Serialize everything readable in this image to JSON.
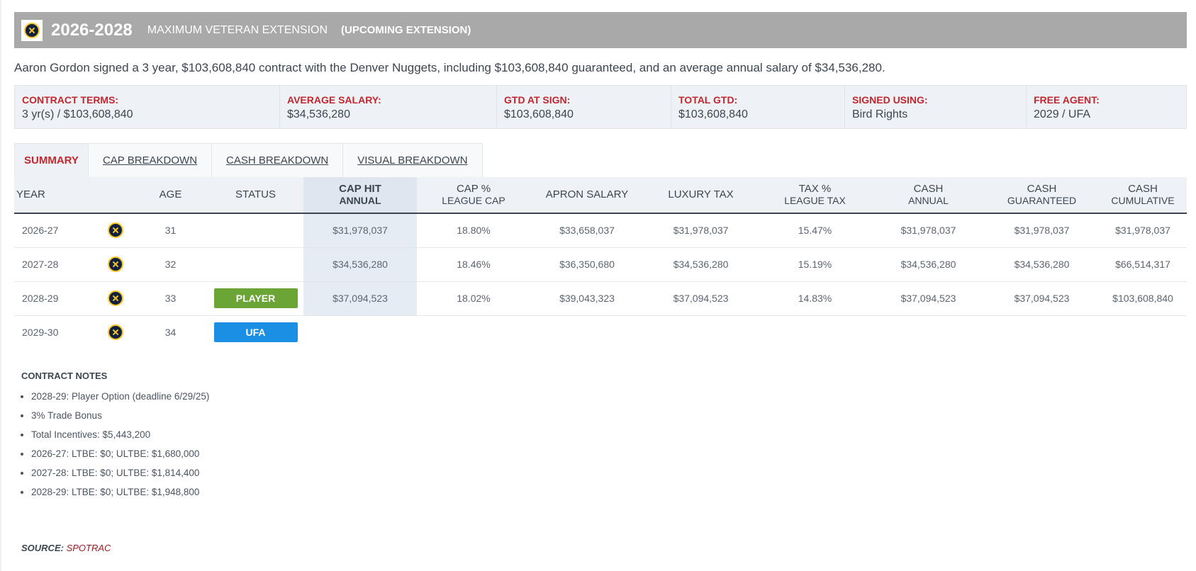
{
  "header": {
    "years": "2026-2028",
    "type": "MAXIMUM VETERAN EXTENSION",
    "status": "(UPCOMING EXTENSION)"
  },
  "description": "Aaron Gordon signed a 3 year, $103,608,840 contract with the Denver Nuggets, including $103,608,840 guaranteed, and an average annual salary of $34,536,280.",
  "info": [
    {
      "label": "CONTRACT TERMS:",
      "value": "3 yr(s) / $103,608,840"
    },
    {
      "label": "AVERAGE SALARY:",
      "value": "$34,536,280"
    },
    {
      "label": "GTD AT SIGN:",
      "value": "$103,608,840"
    },
    {
      "label": "TOTAL GTD:",
      "value": "$103,608,840"
    },
    {
      "label": "SIGNED USING:",
      "value": "Bird Rights"
    },
    {
      "label": "FREE AGENT:",
      "value": "2029 / UFA"
    }
  ],
  "tabs": [
    "SUMMARY",
    "CAP BREAKDOWN",
    "CASH BREAKDOWN",
    "VISUAL BREAKDOWN"
  ],
  "columns": {
    "year": "YEAR",
    "age": "AGE",
    "status": "STATUS",
    "cap_hit": "CAP HIT",
    "cap_hit_sub": "ANNUAL",
    "cap_pct": "CAP %",
    "cap_pct_sub": "LEAGUE CAP",
    "apron": "APRON SALARY",
    "lux": "LUXURY TAX",
    "tax_pct": "TAX %",
    "tax_pct_sub": "LEAGUE TAX",
    "cash": "CASH",
    "cash_sub": "ANNUAL",
    "cash_g": "CASH",
    "cash_g_sub": "GUARANTEED",
    "cash_c": "CASH",
    "cash_c_sub": "CUMULATIVE"
  },
  "rows": [
    {
      "year": "2026-27",
      "age": "31",
      "status": "",
      "cap_hit": "$31,978,037",
      "cap_pct": "18.80%",
      "apron": "$33,658,037",
      "lux": "$31,978,037",
      "tax_pct": "15.47%",
      "cash": "$31,978,037",
      "cash_g": "$31,978,037",
      "cash_c": "$31,978,037"
    },
    {
      "year": "2027-28",
      "age": "32",
      "status": "",
      "cap_hit": "$34,536,280",
      "cap_pct": "18.46%",
      "apron": "$36,350,680",
      "lux": "$34,536,280",
      "tax_pct": "15.19%",
      "cash": "$34,536,280",
      "cash_g": "$34,536,280",
      "cash_c": "$66,514,317"
    },
    {
      "year": "2028-29",
      "age": "33",
      "status": "PLAYER",
      "cap_hit": "$37,094,523",
      "cap_pct": "18.02%",
      "apron": "$39,043,323",
      "lux": "$37,094,523",
      "tax_pct": "14.83%",
      "cash": "$37,094,523",
      "cash_g": "$37,094,523",
      "cash_c": "$103,608,840"
    },
    {
      "year": "2029-30",
      "age": "34",
      "status": "UFA"
    }
  ],
  "status_colors": {
    "PLAYER": "#6aa535",
    "UFA": "#1a8fe3"
  },
  "notes": {
    "title": "CONTRACT NOTES",
    "items": [
      "2028-29: Player Option (deadline 6/29/25)",
      "3% Trade Bonus",
      "Total Incentives: $5,443,200",
      "2026-27: LTBE: $0; ULTBE: $1,680,000",
      "2027-28: LTBE: $0; ULTBE: $1,814,400",
      "2028-29: LTBE: $0; ULTBE: $1,948,800"
    ]
  },
  "source": {
    "label": "SOURCE:",
    "link": "SPOTRAC"
  }
}
